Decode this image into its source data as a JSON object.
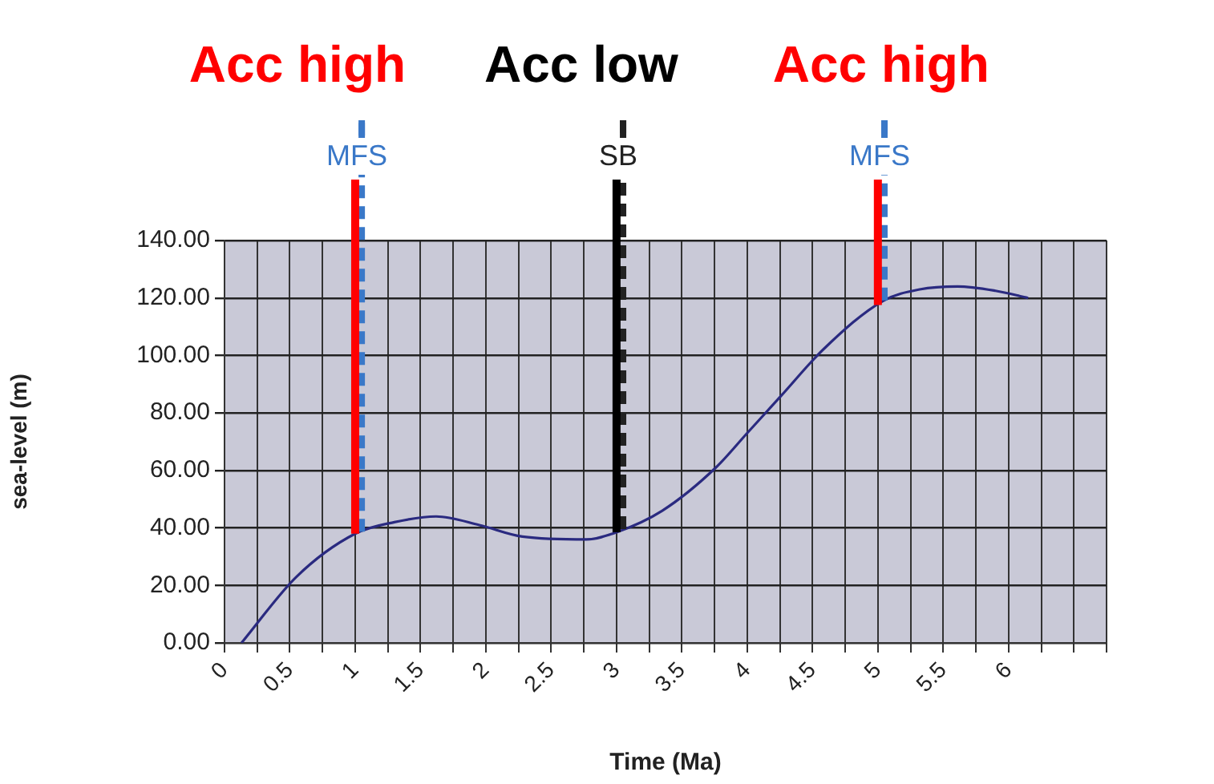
{
  "chart_data": {
    "type": "line",
    "xlabel": "Time (Ma)",
    "ylabel": "sea-level (m)",
    "x": [
      0.13,
      0.55,
      1.0,
      1.3,
      1.62,
      1.95,
      2.28,
      2.77,
      3.0,
      3.35,
      3.76,
      4.0,
      4.26,
      4.58,
      5.04,
      5.32,
      5.61,
      5.9,
      6.15
    ],
    "series": [
      {
        "color": "#2a2a80",
        "values": [
          0,
          23,
          38,
          42,
          44,
          41,
          37,
          36,
          38.5,
          46,
          61,
          73,
          86,
          102,
          119,
          123,
          124,
          122.5,
          120
        ]
      }
    ],
    "xlim": [
      0,
      6.75
    ],
    "xticks": [
      0,
      {
        "value": 0.25,
        "label": null
      },
      0.5,
      {
        "value": 0.75,
        "label": null
      },
      1,
      {
        "value": 1.25,
        "label": null
      },
      1.5,
      {
        "value": 1.75,
        "label": null
      },
      2,
      {
        "value": 2.25,
        "label": null
      },
      2.5,
      {
        "value": 2.75,
        "label": null
      },
      3,
      {
        "value": 3.25,
        "label": null
      },
      3.5,
      {
        "value": 3.75,
        "label": null
      },
      4,
      {
        "value": 4.25,
        "label": null
      },
      4.5,
      {
        "value": 4.75,
        "label": null
      },
      5,
      {
        "value": 5.25,
        "label": null
      },
      5.5,
      {
        "value": 5.75,
        "label": null
      },
      6,
      {
        "value": 6.25,
        "label": null
      },
      {
        "value": 6.5,
        "label": null
      },
      {
        "value": 6.75,
        "label": null
      }
    ],
    "ylim": [
      0,
      140
    ],
    "yticks": [
      {
        "value": 0,
        "label": "0.00"
      },
      {
        "value": 20,
        "label": "20.00"
      },
      {
        "value": 40,
        "label": "40.00"
      },
      {
        "value": 60,
        "label": "60.00"
      },
      {
        "value": 80,
        "label": "80.00"
      },
      {
        "value": 100,
        "label": "100.00"
      },
      {
        "value": 120,
        "label": "120.00"
      },
      {
        "value": 140,
        "label": "140.00"
      }
    ],
    "grid": true,
    "marker": "none",
    "line_style": "solid",
    "legend": false,
    "ref_lines": [
      {
        "axis": "x",
        "value": 1.05,
        "label": "MFS",
        "color": "#3a78c8",
        "line_style": "dashed"
      },
      {
        "axis": "x",
        "value": 1,
        "label": "Acc high",
        "color": "#ff0000",
        "line_style": "solid"
      },
      {
        "axis": "x",
        "value": 3.05,
        "label": "SB",
        "color": "#222222",
        "line_style": "dashed"
      },
      {
        "axis": "x",
        "value": 3,
        "label": "Acc low",
        "color": "#000000",
        "line_style": "solid"
      },
      {
        "axis": "x",
        "value": 5.05,
        "label": "MFS",
        "color": "#3a78c8",
        "line_style": "dashed"
      },
      {
        "axis": "x",
        "value": 5,
        "label": "Acc high",
        "color": "#ff0000",
        "line_style": "solid"
      }
    ]
  }
}
